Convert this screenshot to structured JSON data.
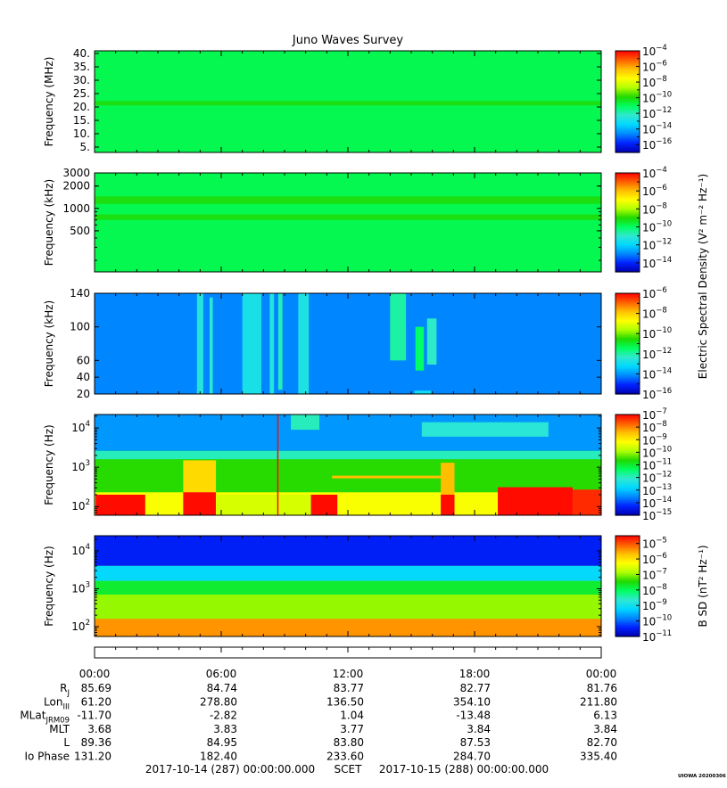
{
  "title": "Juno Waves Survey",
  "stamp": "UIOWA 20200306",
  "colors": {
    "scale": [
      "#0000b0",
      "#0022ff",
      "#0088ff",
      "#00d8ff",
      "#30e8d0",
      "#00ff60",
      "#20d800",
      "#b0ff00",
      "#ffff00",
      "#ffc000",
      "#ff6000",
      "#ff0000"
    ]
  },
  "chart_data": [
    {
      "type": "heatmap",
      "ylabel": "Frequency (MHz)",
      "yscale": "linear",
      "ylim": [
        3,
        41
      ],
      "yticks": [
        {
          "v": 5,
          "label": "5."
        },
        {
          "v": 10,
          "label": "10."
        },
        {
          "v": 15,
          "label": "15."
        },
        {
          "v": 20,
          "label": "20."
        },
        {
          "v": 25,
          "label": "25."
        },
        {
          "v": 30,
          "label": "30."
        },
        {
          "v": 35,
          "label": "35."
        },
        {
          "v": 40,
          "label": "40."
        }
      ],
      "colorbar": {
        "min_exp": -17,
        "max_exp": -4,
        "ticks": [
          -4,
          -6,
          -8,
          -10,
          -12,
          -14,
          -16
        ],
        "label": ""
      },
      "background_level": 0.47,
      "features": [
        {
          "kind": "band",
          "ymin": 20.6,
          "ymax": 22.2,
          "level": 0.53
        }
      ]
    },
    {
      "type": "heatmap",
      "ylabel": "Frequency (kHz)",
      "yscale": "log",
      "ylim": [
        140,
        3000
      ],
      "yticks": [
        {
          "v": 500,
          "label": "500"
        },
        {
          "v": 1000,
          "label": "1000"
        },
        {
          "v": 2000,
          "label": "2000"
        },
        {
          "v": 3000,
          "label": "3000"
        }
      ],
      "colorbar": {
        "min_exp": -15,
        "max_exp": -4,
        "ticks": [
          -4,
          -6,
          -8,
          -10,
          -12,
          -14
        ],
        "label": "Electric Spectral Density (V² m⁻² Hz⁻¹)"
      },
      "background_level": 0.47,
      "features": [
        {
          "kind": "band",
          "ymin": 1150,
          "ymax": 1450,
          "level": 0.53
        },
        {
          "kind": "band",
          "ymin": 700,
          "ymax": 830,
          "level": 0.53
        }
      ]
    },
    {
      "type": "heatmap",
      "ylabel": "Frequency (kHz)",
      "yscale": "linear",
      "ylim": [
        20,
        140
      ],
      "yticks": [
        {
          "v": 20,
          "label": "20"
        },
        {
          "v": 40,
          "label": "40"
        },
        {
          "v": 60,
          "label": "60"
        },
        {
          "v": 100,
          "label": "100"
        },
        {
          "v": 140,
          "label": "140"
        }
      ],
      "colorbar": {
        "min_exp": -16,
        "max_exp": -6,
        "ticks": [
          -6,
          -8,
          -10,
          -12,
          -14,
          -16
        ],
        "label": ""
      },
      "background_level": 0.18,
      "features": [
        {
          "kind": "streak",
          "t0": 9.7,
          "t1": 10.3,
          "ymin": 20,
          "ymax": 140,
          "level": 0.34
        },
        {
          "kind": "streak",
          "t0": 10.9,
          "t1": 11.2,
          "ymin": 20,
          "ymax": 135,
          "level": 0.36
        },
        {
          "kind": "streak",
          "t0": 14.0,
          "t1": 15.8,
          "ymin": 20,
          "ymax": 140,
          "level": 0.32
        },
        {
          "kind": "streak",
          "t0": 16.6,
          "t1": 17.0,
          "ymin": 20,
          "ymax": 140,
          "level": 0.34
        },
        {
          "kind": "streak",
          "t0": 17.4,
          "t1": 17.8,
          "ymin": 25,
          "ymax": 140,
          "level": 0.38
        },
        {
          "kind": "streak",
          "t0": 19.3,
          "t1": 20.3,
          "ymin": 20,
          "ymax": 140,
          "level": 0.33
        },
        {
          "kind": "streak",
          "t0": 28.0,
          "t1": 29.5,
          "ymin": 60,
          "ymax": 140,
          "level": 0.4
        },
        {
          "kind": "streak",
          "t0": 30.4,
          "t1": 31.2,
          "ymin": 48,
          "ymax": 100,
          "level": 0.45
        },
        {
          "kind": "streak",
          "t0": 31.5,
          "t1": 32.4,
          "ymin": 55,
          "ymax": 110,
          "level": 0.37
        },
        {
          "kind": "band",
          "tmin": 30.3,
          "tmax": 31.9,
          "ymin": 20,
          "ymax": 24,
          "level": 0.3
        }
      ]
    },
    {
      "type": "heatmap",
      "ylabel": "Frequency (Hz)",
      "yscale": "log",
      "ylim": [
        60,
        22000
      ],
      "yticks": [
        {
          "v": 100,
          "base": "10",
          "exp": "2"
        },
        {
          "v": 1000,
          "base": "10",
          "exp": "3"
        },
        {
          "v": 10000,
          "base": "10",
          "exp": "4"
        }
      ],
      "colorbar": {
        "min_exp": -15,
        "max_exp": -7,
        "ticks": [
          -7,
          -8,
          -9,
          -10,
          -11,
          -12,
          -13,
          -14,
          -15
        ],
        "label": ""
      },
      "background_level": 0.55,
      "features": [
        {
          "kind": "band",
          "ymin": 2600,
          "ymax": 22000,
          "level": 0.2
        },
        {
          "kind": "band",
          "ymin": 1600,
          "ymax": 2600,
          "level": 0.38
        },
        {
          "kind": "band",
          "ymin": 60,
          "ymax": 230,
          "level": 0.72
        },
        {
          "kind": "band",
          "tmin": 0.1,
          "tmax": 4.8,
          "ymin": 60,
          "ymax": 200,
          "level": 0.99
        },
        {
          "kind": "band",
          "tmin": 8.4,
          "tmax": 11.5,
          "ymin": 60,
          "ymax": 1500,
          "level": 0.78
        },
        {
          "kind": "band",
          "tmin": 8.4,
          "tmax": 11.5,
          "ymin": 60,
          "ymax": 230,
          "level": 0.99
        },
        {
          "kind": "band",
          "tmin": 11.5,
          "tmax": 20.5,
          "ymin": 60,
          "ymax": 200,
          "level": 0.68
        },
        {
          "kind": "band",
          "tmin": 20.5,
          "tmax": 23.0,
          "ymin": 60,
          "ymax": 200,
          "level": 0.99
        },
        {
          "kind": "band",
          "tmin": 22.5,
          "tmax": 34.0,
          "ymin": 520,
          "ymax": 610,
          "level": 0.82
        },
        {
          "kind": "band",
          "tmin": 32.8,
          "tmax": 34.1,
          "ymin": 60,
          "ymax": 1300,
          "level": 0.82
        },
        {
          "kind": "band",
          "tmin": 32.8,
          "tmax": 34.1,
          "ymin": 60,
          "ymax": 200,
          "level": 0.99
        },
        {
          "kind": "band",
          "tmin": 38.2,
          "tmax": 45.3,
          "ymin": 60,
          "ymax": 310,
          "level": 0.99
        },
        {
          "kind": "band",
          "tmin": 45.3,
          "tmax": 48.6,
          "ymin": 60,
          "ymax": 270,
          "level": 0.96
        },
        {
          "kind": "streak",
          "t0": 17.3,
          "t1": 17.3,
          "ymin": 60,
          "ymax": 22000,
          "level": 0.99
        },
        {
          "kind": "band",
          "tmin": 18.6,
          "tmax": 21.3,
          "ymin": 9000,
          "ymax": 22000,
          "level": 0.38
        },
        {
          "kind": "band",
          "tmin": 31.0,
          "tmax": 43.0,
          "ymin": 6000,
          "ymax": 14000,
          "level": 0.35
        }
      ]
    },
    {
      "type": "heatmap",
      "ylabel": "Frequency (Hz)",
      "yscale": "log",
      "ylim": [
        55,
        25000
      ],
      "yticks": [
        {
          "v": 100,
          "base": "10",
          "exp": "2"
        },
        {
          "v": 1000,
          "base": "10",
          "exp": "3"
        },
        {
          "v": 10000,
          "base": "10",
          "exp": "4"
        }
      ],
      "colorbar": {
        "min_exp": -11,
        "max_exp": -4.5,
        "ticks": [
          -5,
          -6,
          -7,
          -8,
          -9,
          -10,
          -11
        ],
        "label": "B SD (nT² Hz⁻¹)"
      },
      "background_level": 0.62,
      "features": [
        {
          "kind": "band",
          "ymin": 4000,
          "ymax": 25000,
          "level": 0.08
        },
        {
          "kind": "band",
          "ymin": 1600,
          "ymax": 4000,
          "level": 0.28
        },
        {
          "kind": "band",
          "ymin": 700,
          "ymax": 1600,
          "level": 0.5
        },
        {
          "kind": "band",
          "ymin": 55,
          "ymax": 160,
          "level": 0.86
        }
      ]
    }
  ],
  "ephemeris": {
    "time_ticks": [
      "00:00",
      "06:00",
      "12:00",
      "18:00",
      "00:00"
    ],
    "rows": [
      {
        "label": "R",
        "sub": "J",
        "values": [
          "85.69",
          "84.74",
          "83.77",
          "82.77",
          "81.76"
        ]
      },
      {
        "label": "Lon",
        "sub": "III",
        "values": [
          "61.20",
          "278.80",
          "136.50",
          "354.10",
          "211.80"
        ]
      },
      {
        "label": "MLat",
        "sub": "JRM09",
        "values": [
          "-11.70",
          "-2.82",
          "1.04",
          "-13.48",
          "6.13"
        ]
      },
      {
        "label": "MLT",
        "sub": "",
        "values": [
          "3.68",
          "3.83",
          "3.77",
          "3.84",
          "3.84"
        ]
      },
      {
        "label": "L",
        "sub": "",
        "values": [
          "89.36",
          "84.95",
          "83.80",
          "87.53",
          "82.70"
        ]
      },
      {
        "label": "Io Phase",
        "sub": "",
        "values": [
          "131.20",
          "182.40",
          "233.60",
          "284.70",
          "335.40"
        ]
      }
    ]
  },
  "footer": {
    "start": "2017-10-14 (287) 00:00:00.000",
    "mid": "SCET",
    "end": "2017-10-15 (288) 00:00:00.000"
  }
}
